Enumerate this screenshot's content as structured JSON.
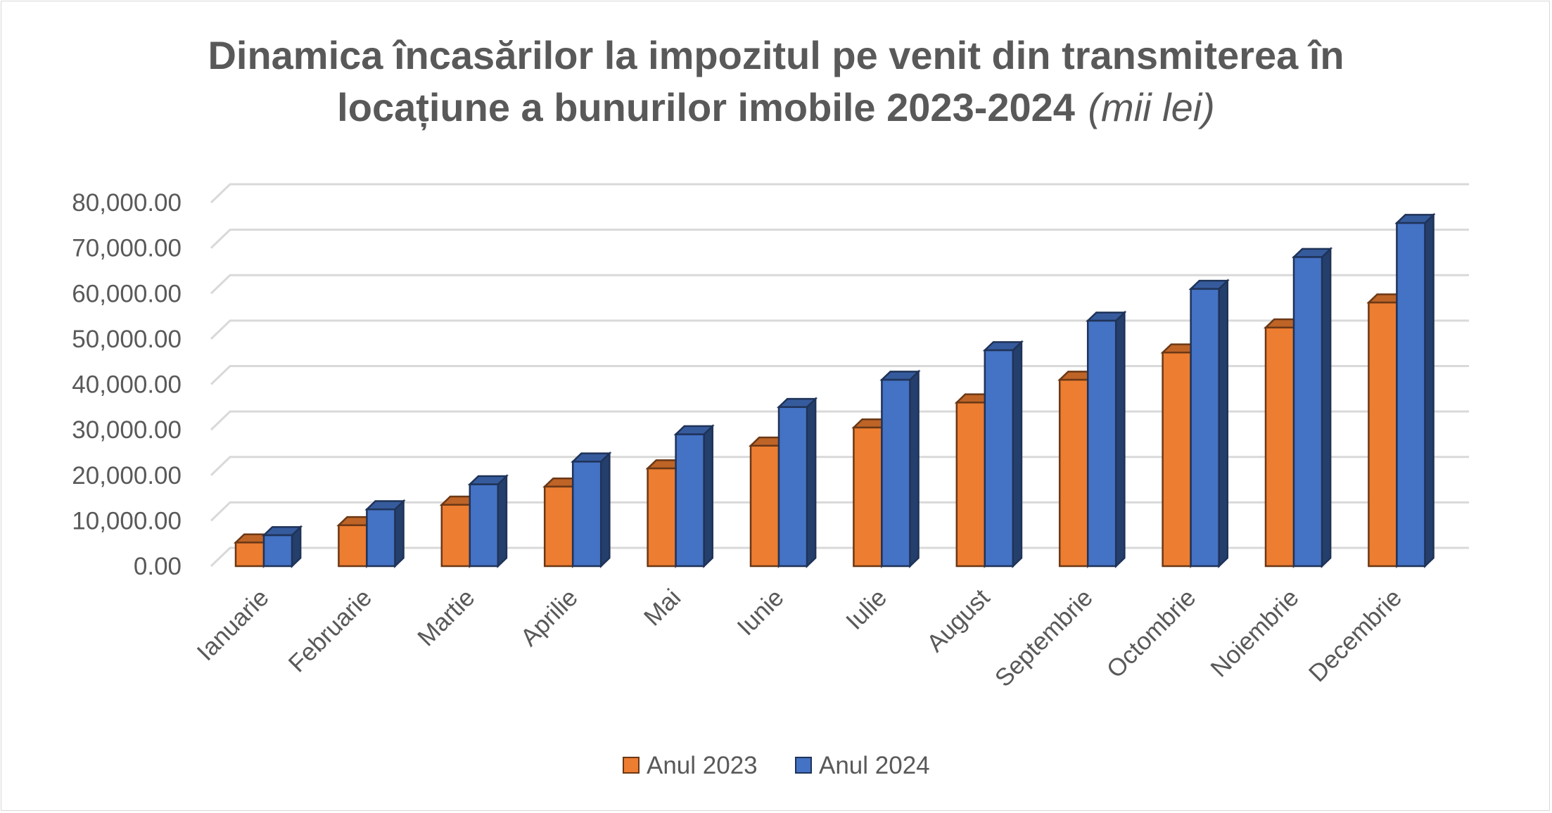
{
  "chart_data": {
    "type": "bar",
    "title": "Dinamica încasărilor la impozitul pe venit din transmiterea în locațiune a bunurilor imobile 2023-2024",
    "title_line1": "Dinamica încasărilor la impozitul pe venit din transmiterea în",
    "title_line2": "locațiune a bunurilor imobile 2023-2024",
    "title_unit": "(mii lei)",
    "style": "3d-clustered-column",
    "categories": [
      "Ianuarie",
      "Februarie",
      "Martie",
      "Aprilie",
      "Mai",
      "Iunie",
      "Iulie",
      "August",
      "Septembrie",
      "Octombrie",
      "Noiembrie",
      "Decembrie"
    ],
    "series": [
      {
        "name": "Anul 2023",
        "color": "#ED7D31",
        "values": [
          5200,
          9000,
          13500,
          17500,
          21500,
          26500,
          30500,
          36000,
          41000,
          47000,
          52500,
          58000
        ]
      },
      {
        "name": "Anul 2024",
        "color": "#4472C4",
        "values": [
          6800,
          12500,
          18000,
          23000,
          29000,
          35000,
          41000,
          47500,
          54000,
          61000,
          68000,
          75500
        ]
      }
    ],
    "ylim": [
      0,
      80000
    ],
    "y_ticks": [
      "0.00",
      "10,000.00",
      "20,000.00",
      "30,000.00",
      "40,000.00",
      "50,000.00",
      "60,000.00",
      "70,000.00",
      "80,000.00"
    ],
    "grid": true,
    "legend_position": "bottom"
  }
}
